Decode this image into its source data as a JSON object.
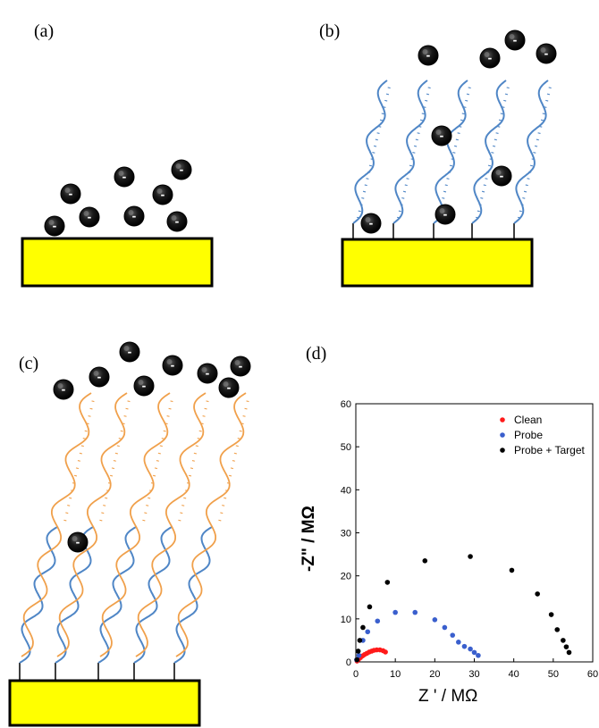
{
  "panels": {
    "a": {
      "label": "(a)"
    },
    "b": {
      "label": "(b)"
    },
    "c": {
      "label": "(c)"
    },
    "d": {
      "label": "(d)"
    }
  },
  "ion": {
    "sign": "-"
  },
  "colors": {
    "electrode": "#ffff00",
    "probe_strand": "#4f86c6",
    "target_strand": "#f0a04b",
    "ion": "#111111",
    "clean": "#ff1a1a",
    "probe": "#3a5fcd",
    "probe_target": "#000000"
  },
  "chart_data": {
    "type": "scatter",
    "xlabel": "Z ' / MΩ",
    "ylabel": "-Z\" / MΩ",
    "xlim": [
      0,
      60
    ],
    "ylim": [
      0,
      60
    ],
    "xticks": [
      0,
      10,
      20,
      30,
      40,
      50,
      60
    ],
    "yticks": [
      0,
      10,
      20,
      30,
      40,
      50,
      60
    ],
    "legend_position": "top-right",
    "series": [
      {
        "name": "Clean",
        "color": "#ff1a1a",
        "points": [
          [
            0.3,
            0.2
          ],
          [
            0.7,
            0.6
          ],
          [
            1.2,
            1.0
          ],
          [
            1.7,
            1.4
          ],
          [
            2.2,
            1.7
          ],
          [
            2.8,
            2.0
          ],
          [
            3.4,
            2.3
          ],
          [
            4.0,
            2.5
          ],
          [
            4.6,
            2.7
          ],
          [
            5.3,
            2.8
          ],
          [
            6.1,
            2.8
          ],
          [
            6.9,
            2.6
          ],
          [
            7.5,
            2.3
          ]
        ]
      },
      {
        "name": "Probe",
        "color": "#3a5fcd",
        "points": [
          [
            0.2,
            0.5
          ],
          [
            0.8,
            1.5
          ],
          [
            1.8,
            5.0
          ],
          [
            3.0,
            7.0
          ],
          [
            5.5,
            9.5
          ],
          [
            10.0,
            11.5
          ],
          [
            15.0,
            11.5
          ],
          [
            20.0,
            9.8
          ],
          [
            22.5,
            8.0
          ],
          [
            24.5,
            6.2
          ],
          [
            26.0,
            4.6
          ],
          [
            27.5,
            3.6
          ],
          [
            29.0,
            3.0
          ],
          [
            30.0,
            2.2
          ],
          [
            31.0,
            1.5
          ]
        ]
      },
      {
        "name": "Probe + Target",
        "color": "#000000",
        "points": [
          [
            0.3,
            0.5
          ],
          [
            0.6,
            2.5
          ],
          [
            1.0,
            5.0
          ],
          [
            1.8,
            8.0
          ],
          [
            3.5,
            12.8
          ],
          [
            8.0,
            18.5
          ],
          [
            17.5,
            23.5
          ],
          [
            29.0,
            24.5
          ],
          [
            39.5,
            21.3
          ],
          [
            46.0,
            15.8
          ],
          [
            49.5,
            11.0
          ],
          [
            51.0,
            7.5
          ],
          [
            52.5,
            5.0
          ],
          [
            53.3,
            3.5
          ],
          [
            54.0,
            2.2
          ]
        ]
      }
    ]
  }
}
